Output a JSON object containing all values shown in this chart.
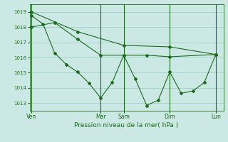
{
  "background_color": "#cce8e4",
  "grid_color": "#99ccc8",
  "line_color": "#1a6b1a",
  "marker_color": "#1a6b1a",
  "xlabel": "Pression niveau de la mer( hPa )",
  "xlabel_color": "#1a6b1a",
  "tick_color": "#1a6b1a",
  "ylim": [
    1012.5,
    1019.5
  ],
  "yticks": [
    1013,
    1014,
    1015,
    1016,
    1017,
    1018,
    1019
  ],
  "day_labels": [
    "Ven",
    "Mar",
    "Sam",
    "Dim",
    "Lun"
  ],
  "day_x": [
    0,
    36,
    48,
    72,
    96
  ],
  "xlim": [
    -1,
    100
  ],
  "series1_x": [
    0,
    24,
    48,
    72,
    96
  ],
  "series1_y": [
    1019.0,
    1017.7,
    1016.8,
    1016.7,
    1016.2
  ],
  "series2_x": [
    0,
    12,
    24,
    36,
    48,
    60,
    72,
    96
  ],
  "series2_y": [
    1018.0,
    1018.3,
    1017.2,
    1016.15,
    1016.15,
    1016.15,
    1016.05,
    1016.2
  ],
  "series3_x": [
    0,
    6,
    12,
    18,
    24,
    30,
    36,
    42,
    48,
    54,
    60,
    66,
    72,
    78,
    84,
    90,
    96
  ],
  "series3_y": [
    1018.75,
    1018.2,
    1016.3,
    1015.55,
    1015.05,
    1014.3,
    1013.35,
    1014.35,
    1016.15,
    1014.6,
    1012.85,
    1013.2,
    1015.05,
    1013.65,
    1013.8,
    1014.35,
    1016.2
  ],
  "figsize": [
    3.2,
    2.0
  ],
  "dpi": 100
}
